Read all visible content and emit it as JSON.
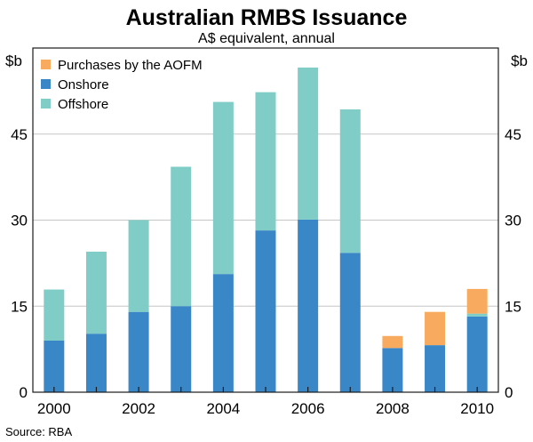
{
  "chart_data": {
    "type": "bar",
    "stacked": true,
    "title": "Australian RMBS Issuance",
    "subtitle": "A$ equivalent, annual",
    "y_unit_left": "$b",
    "y_unit_right": "$b",
    "source": "Source: RBA",
    "categories": [
      "2000",
      "2001",
      "2002",
      "2003",
      "2004",
      "2005",
      "2006",
      "2007",
      "2008",
      "2009",
      "2010"
    ],
    "x_tick_labels": [
      "2000",
      "2002",
      "2004",
      "2006",
      "2008",
      "2010"
    ],
    "y_ticks": [
      0,
      15,
      30,
      45
    ],
    "ylim": [
      0,
      60
    ],
    "grid": true,
    "legend_position": "top-left",
    "series": [
      {
        "name": "Onshore",
        "color": "#3a87c8",
        "values": [
          9,
          10.2,
          14,
          15,
          20.6,
          28.2,
          30.1,
          24.3,
          7.7,
          8.2,
          13.2
        ]
      },
      {
        "name": "Offshore",
        "color": "#7fcdc6",
        "values": [
          8.9,
          14.3,
          16,
          24.3,
          30,
          24.1,
          26.5,
          25,
          0,
          0,
          0.5
        ]
      },
      {
        "name": "Purchases by the AOFM",
        "color": "#f8ab5e",
        "values": [
          0,
          0,
          0,
          0,
          0,
          0,
          0,
          0,
          2.1,
          5.8,
          4.3
        ]
      }
    ],
    "legend_order": [
      "Purchases by the AOFM",
      "Onshore",
      "Offshore"
    ]
  }
}
